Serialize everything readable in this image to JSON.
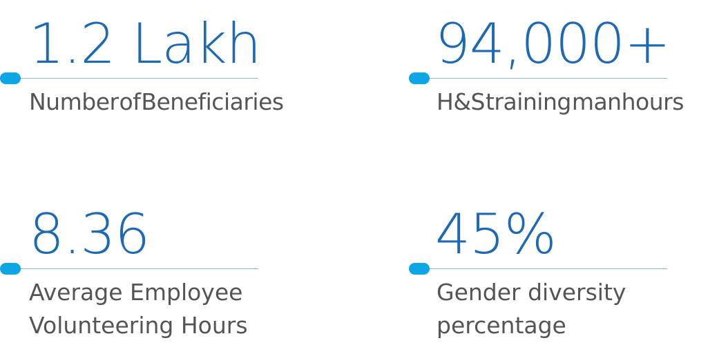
{
  "stats": [
    {
      "value": "1.2 Lakh",
      "label": "Number of Beneficiaries"
    },
    {
      "value": "94,000+",
      "label": "H&S training manhours"
    },
    {
      "value": "8.36",
      "label": "Average Employee\nVolunteering Hours"
    },
    {
      "value": "45%",
      "label": "Gender diversity\npercentage"
    }
  ],
  "colors": {
    "value_blue": "#1d69b3",
    "accent_dot": "#0aa6e6",
    "rule_line": "#8ab4cf",
    "label_gray": "#555555"
  }
}
